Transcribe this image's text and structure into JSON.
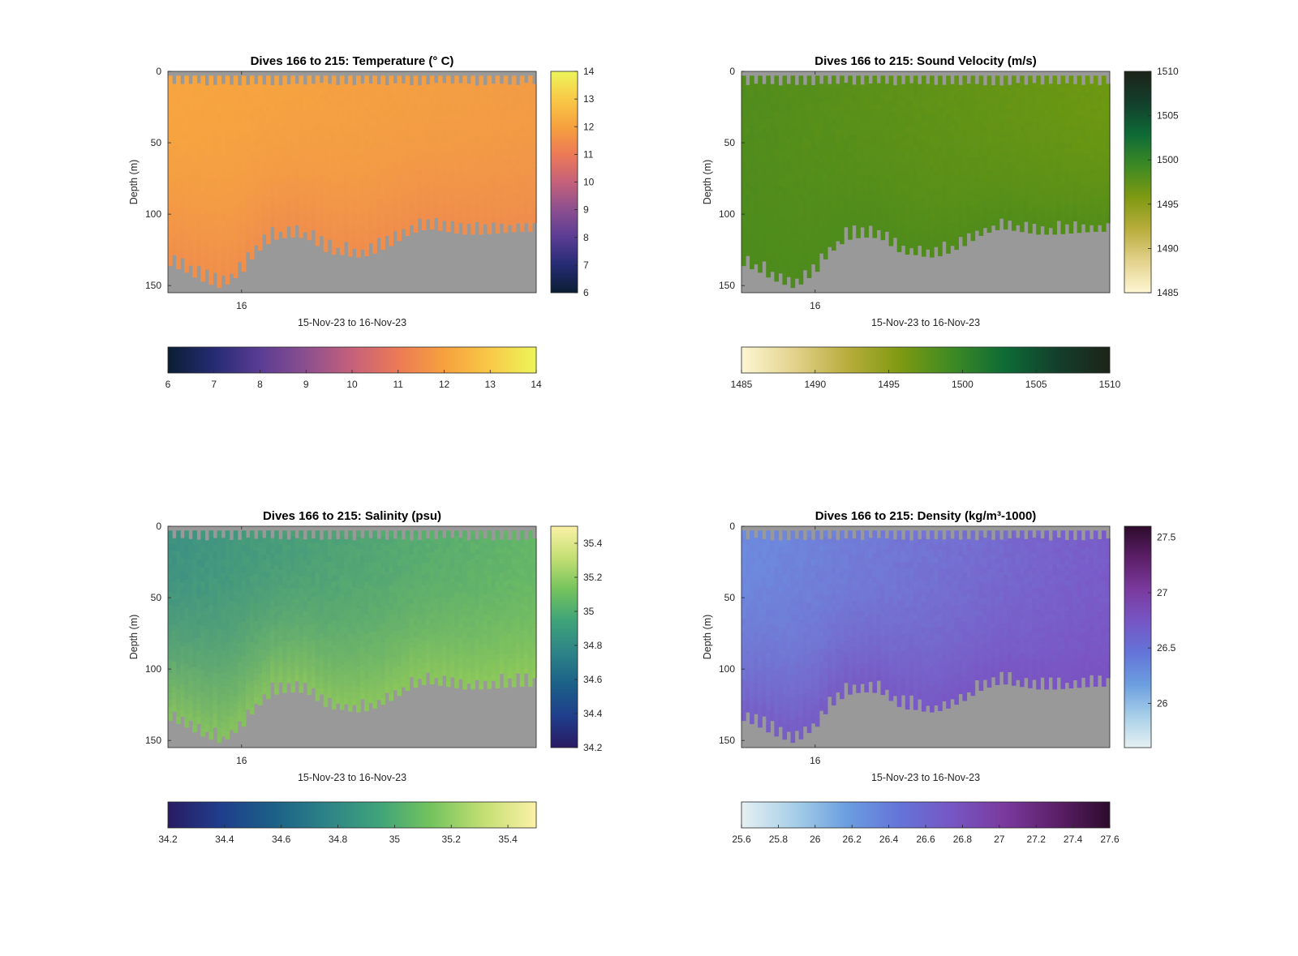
{
  "chart_data": [
    {
      "type": "heatmap",
      "title": "Dives 166 to 215: Temperature (° C)",
      "ylabel": "Depth (m)",
      "xlabel": "15-Nov-23 to 16-Nov-23",
      "x_ticks": [
        "16"
      ],
      "y_ticks": [
        "0",
        "50",
        "100",
        "150"
      ],
      "ylim": [
        0,
        155
      ],
      "clim": [
        6,
        14
      ],
      "colorbar_ticks": [
        "6",
        "7",
        "8",
        "9",
        "10",
        "11",
        "12",
        "13",
        "14"
      ],
      "colormap": [
        "#0b1e33",
        "#252b73",
        "#5a3c94",
        "#8c4f8f",
        "#c5617a",
        "#ec7a56",
        "#f6a13e",
        "#f9c947",
        "#ecf55a"
      ],
      "surface_colors": [
        "#f7a63f",
        "#f29b45"
      ],
      "bottom_color": "#ee8750",
      "surface_value_range": [
        11.8,
        12.2
      ]
    },
    {
      "type": "heatmap",
      "title": "Dives 166 to 215: Sound Velocity (m/s)",
      "ylabel": "Depth (m)",
      "xlabel": "15-Nov-23 to 16-Nov-23",
      "x_ticks": [
        "16"
      ],
      "y_ticks": [
        "0",
        "50",
        "100",
        "150"
      ],
      "ylim": [
        0,
        155
      ],
      "clim": [
        1485,
        1510
      ],
      "colorbar_ticks": [
        "1485",
        "1490",
        "1495",
        "1500",
        "1505",
        "1510"
      ],
      "colormap": [
        "#fdf6d3",
        "#e3d28c",
        "#b9ad3d",
        "#7f9a11",
        "#3e8a24",
        "#0e6b36",
        "#133f2c",
        "#1d2319"
      ],
      "surface_colors": [
        "#4f8c1d",
        "#6e9812"
      ],
      "bottom_color": "#4a8a1c",
      "surface_value_range": [
        1497,
        1499
      ]
    },
    {
      "type": "heatmap",
      "title": "Dives 166 to 215: Salinity (psu)",
      "ylabel": "Depth (m)",
      "xlabel": "15-Nov-23 to 16-Nov-23",
      "x_ticks": [
        "16"
      ],
      "y_ticks": [
        "0",
        "50",
        "100",
        "150"
      ],
      "ylim": [
        0,
        155
      ],
      "clim": [
        34.2,
        35.5
      ],
      "colorbar_ticks": [
        "34.2",
        "34.4",
        "34.6",
        "34.8",
        "35",
        "35.2",
        "35.4"
      ],
      "colormap": [
        "#2a1a63",
        "#1f3e8c",
        "#1b6087",
        "#2d8387",
        "#3ea37a",
        "#74c35d",
        "#c3df73",
        "#fbf1a6"
      ],
      "surface_colors": [
        "#3a8f84",
        "#66b866"
      ],
      "bottom_color": "#9ccf55",
      "surface_value_range": [
        34.8,
        35.1
      ]
    },
    {
      "type": "heatmap",
      "title": "Dives 166 to 215: Density (kg/m³-1000)",
      "ylabel": "Depth (m)",
      "xlabel": "15-Nov-23 to 16-Nov-23",
      "x_ticks": [
        "16"
      ],
      "y_ticks": [
        "0",
        "50",
        "100",
        "150"
      ],
      "ylim": [
        0,
        155
      ],
      "clim": [
        25.6,
        27.6
      ],
      "colorbar_ticks_vertical": [
        "26",
        "26.5",
        "27",
        "27.5"
      ],
      "colorbar_ticks": [
        "25.6",
        "25.8",
        "26",
        "26.2",
        "26.4",
        "26.6",
        "26.8",
        "27",
        "27.2",
        "27.4",
        "27.6"
      ],
      "colormap": [
        "#e5f0f2",
        "#a8cfe8",
        "#6b9ee0",
        "#6474d8",
        "#7656c4",
        "#7a3a9e",
        "#5c1f68",
        "#2d0b2c"
      ],
      "surface_colors": [
        "#6c8ee0",
        "#7a5ac7"
      ],
      "bottom_color": "#7a4fbf",
      "surface_value_range": [
        26.3,
        26.8
      ]
    }
  ]
}
